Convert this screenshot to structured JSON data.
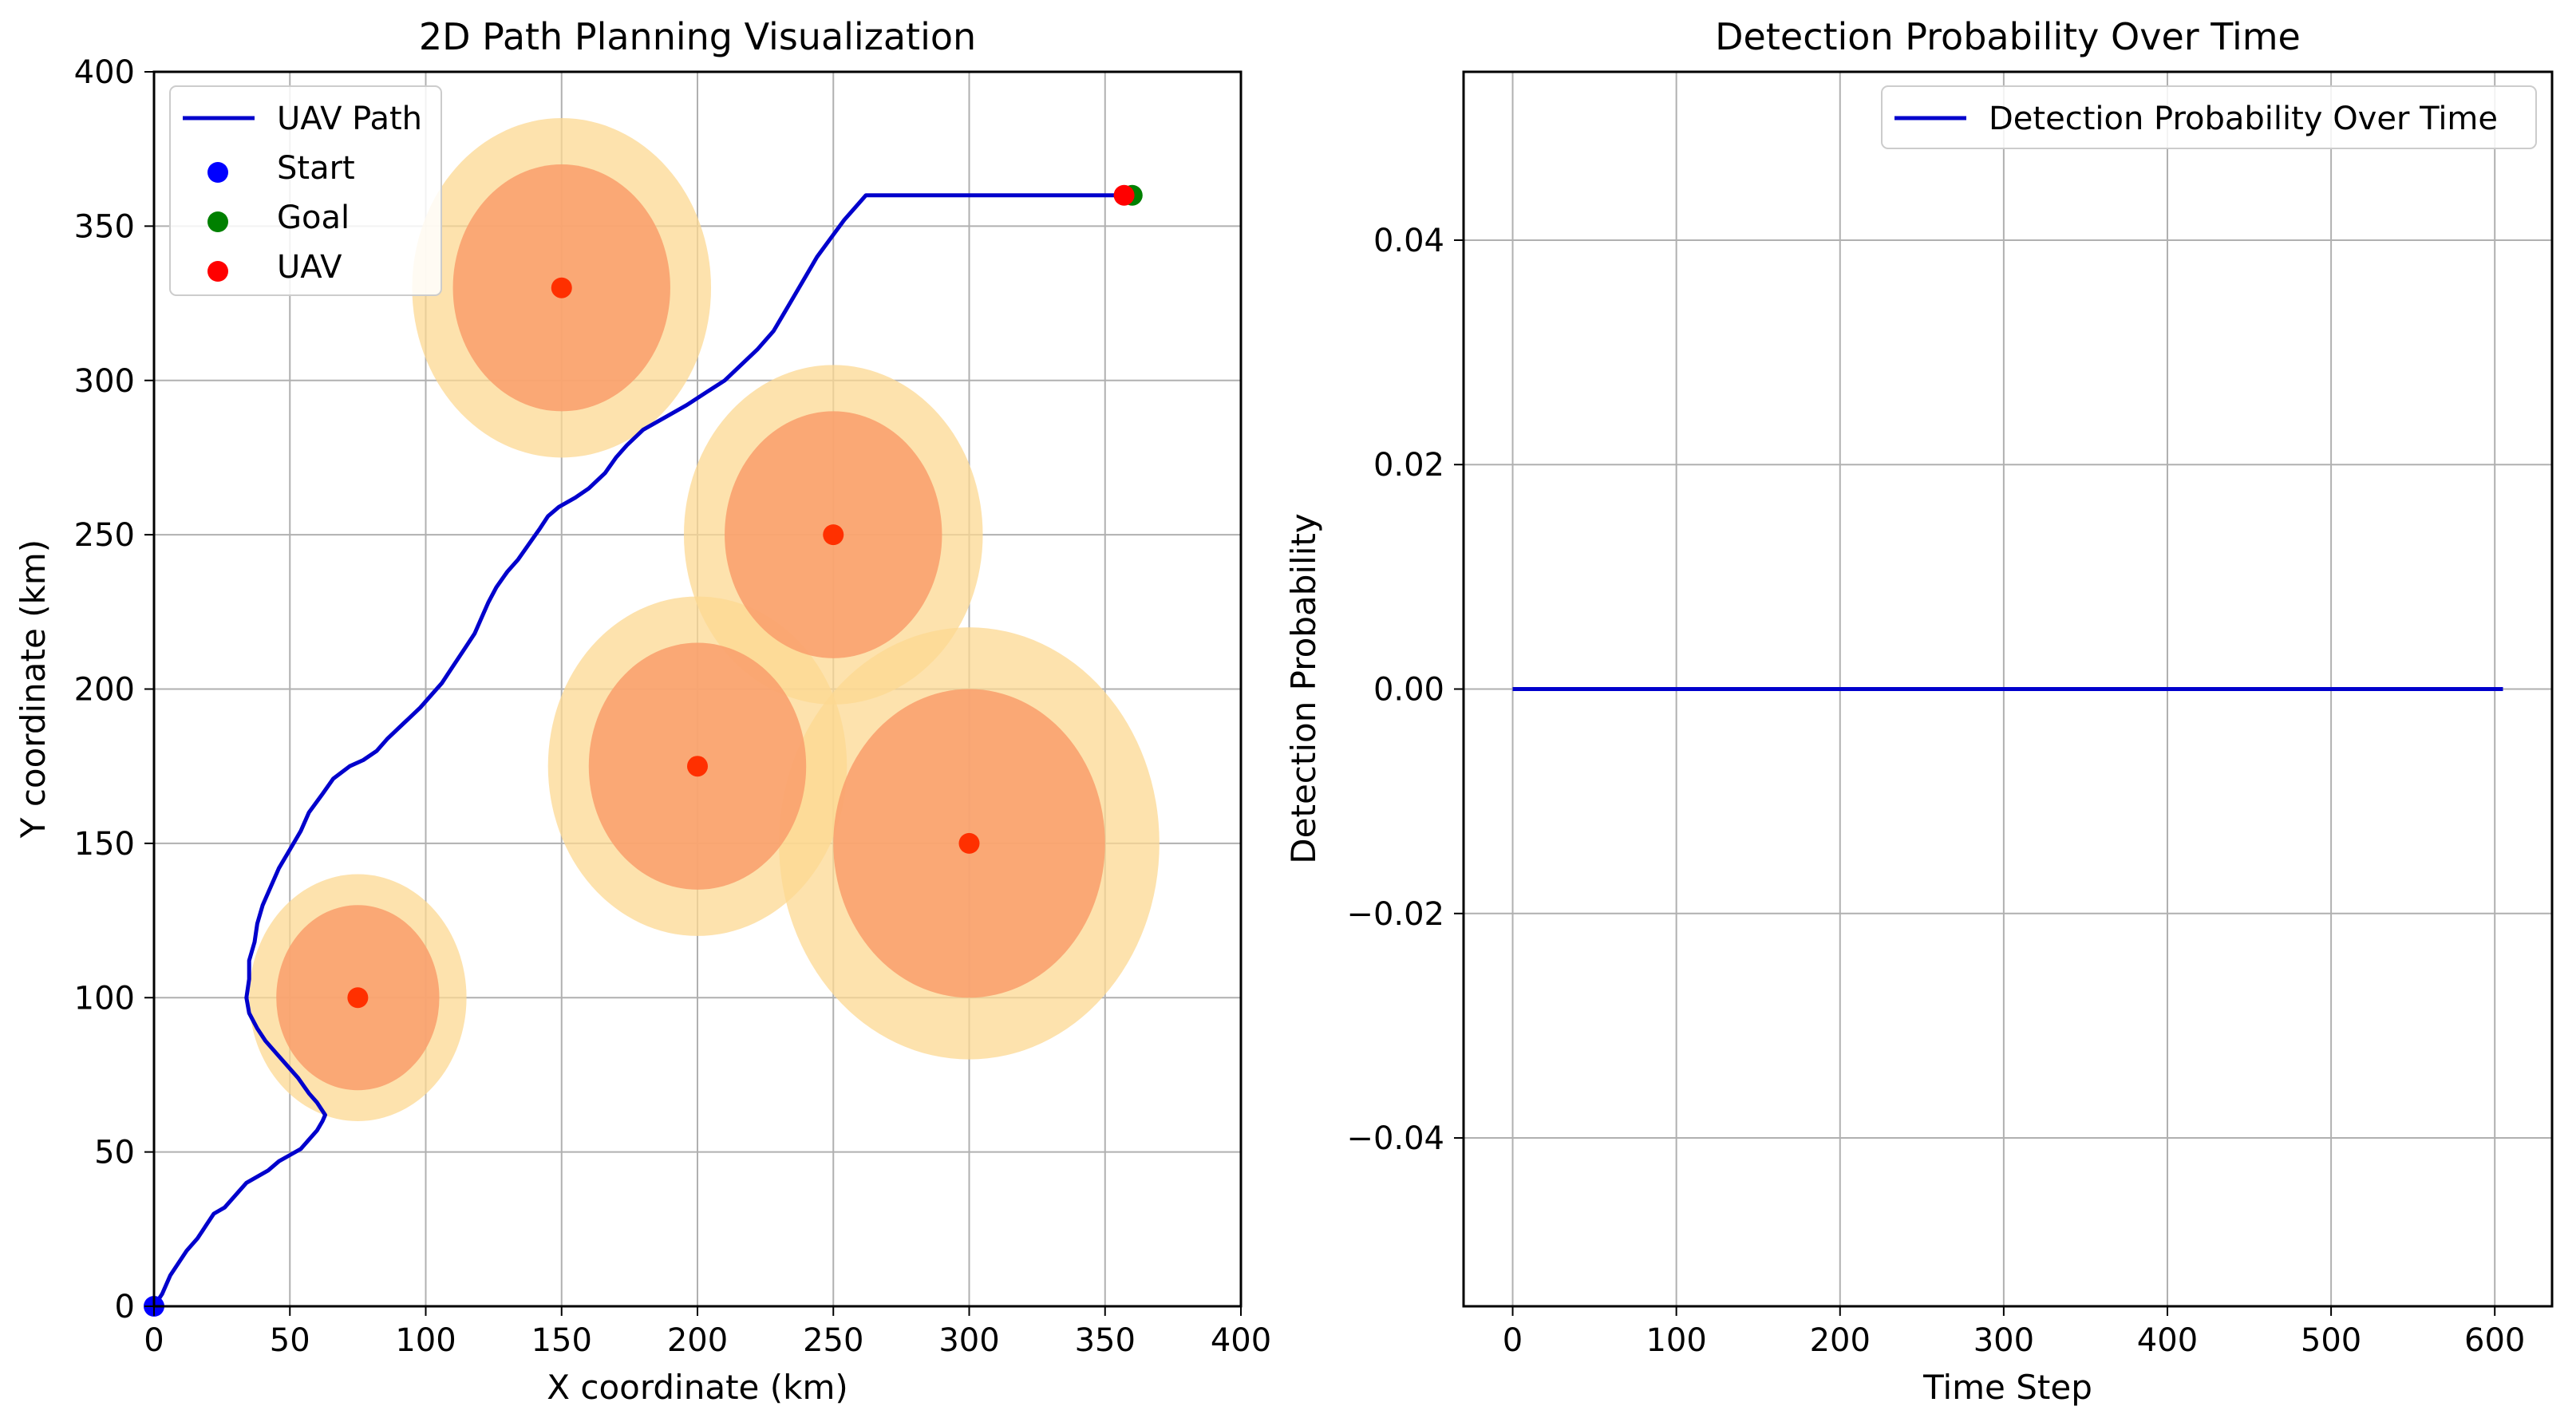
{
  "chart_data": [
    {
      "type": "line",
      "title": "2D Path Planning Visualization",
      "xlabel": "X coordinate (km)",
      "ylabel": "Y coordinate (km)",
      "xlim": [
        0,
        400
      ],
      "ylim": [
        0,
        400
      ],
      "xticks": [
        0,
        50,
        100,
        150,
        200,
        250,
        300,
        350,
        400
      ],
      "yticks": [
        0,
        50,
        100,
        150,
        200,
        250,
        300,
        350,
        400
      ],
      "grid": true,
      "legend_position": "top-left",
      "legend": [
        {
          "label": "UAV Path",
          "kind": "line",
          "color": "#0000cc"
        },
        {
          "label": "Start",
          "kind": "dot",
          "color": "#0000ff"
        },
        {
          "label": "Goal",
          "kind": "dot",
          "color": "#008000"
        },
        {
          "label": "UAV",
          "kind": "dot",
          "color": "#ff0000"
        }
      ],
      "path_color": "#0000cc",
      "path": [
        [
          0,
          0
        ],
        [
          3,
          4
        ],
        [
          6,
          10
        ],
        [
          9,
          14
        ],
        [
          12,
          18
        ],
        [
          16,
          22
        ],
        [
          19,
          26
        ],
        [
          22,
          30
        ],
        [
          26,
          32
        ],
        [
          30,
          36
        ],
        [
          34,
          40
        ],
        [
          38,
          42
        ],
        [
          42,
          44
        ],
        [
          46,
          47
        ],
        [
          50,
          49
        ],
        [
          54,
          51
        ],
        [
          57,
          54
        ],
        [
          60,
          57
        ],
        [
          62,
          60
        ],
        [
          63,
          62
        ],
        [
          60,
          66
        ],
        [
          57,
          69
        ],
        [
          53,
          74
        ],
        [
          49,
          78
        ],
        [
          45,
          82
        ],
        [
          41,
          86
        ],
        [
          38,
          90
        ],
        [
          35,
          95
        ],
        [
          34,
          100
        ],
        [
          35,
          106
        ],
        [
          35,
          112
        ],
        [
          37,
          118
        ],
        [
          38,
          124
        ],
        [
          40,
          130
        ],
        [
          43,
          136
        ],
        [
          46,
          142
        ],
        [
          50,
          148
        ],
        [
          54,
          154
        ],
        [
          57,
          160
        ],
        [
          62,
          166
        ],
        [
          66,
          171
        ],
        [
          72,
          175
        ],
        [
          77,
          177
        ],
        [
          82,
          180
        ],
        [
          86,
          184
        ],
        [
          92,
          189
        ],
        [
          98,
          194
        ],
        [
          102,
          198
        ],
        [
          106,
          202
        ],
        [
          109,
          206
        ],
        [
          112,
          210
        ],
        [
          115,
          214
        ],
        [
          118,
          218
        ],
        [
          120,
          222
        ],
        [
          123,
          228
        ],
        [
          126,
          233
        ],
        [
          130,
          238
        ],
        [
          134,
          242
        ],
        [
          138,
          247
        ],
        [
          142,
          252
        ],
        [
          145,
          256
        ],
        [
          149,
          259
        ],
        [
          155,
          262
        ],
        [
          160,
          265
        ],
        [
          166,
          270
        ],
        [
          170,
          275
        ],
        [
          174,
          279
        ],
        [
          180,
          284
        ],
        [
          188,
          288
        ],
        [
          196,
          292
        ],
        [
          203,
          296
        ],
        [
          210,
          300
        ],
        [
          216,
          305
        ],
        [
          222,
          310
        ],
        [
          228,
          316
        ],
        [
          232,
          322
        ],
        [
          236,
          328
        ],
        [
          240,
          334
        ],
        [
          244,
          340
        ],
        [
          249,
          346
        ],
        [
          254,
          352
        ],
        [
          258,
          356
        ],
        [
          262,
          360
        ],
        [
          358,
          360
        ]
      ],
      "threats": [
        {
          "x": 75,
          "y": 100,
          "inner_r": 30,
          "outer_r": 40
        },
        {
          "x": 150,
          "y": 330,
          "inner_r": 40,
          "outer_r": 55
        },
        {
          "x": 200,
          "y": 175,
          "inner_r": 40,
          "outer_r": 55
        },
        {
          "x": 250,
          "y": 250,
          "inner_r": 40,
          "outer_r": 55
        },
        {
          "x": 300,
          "y": 150,
          "inner_r": 50,
          "outer_r": 70
        }
      ],
      "threat_inner_color": "#f99d6b",
      "threat_outer_color": "#fcd891",
      "threat_center_color": "#ff3000",
      "start": {
        "x": 0,
        "y": 0
      },
      "goal": {
        "x": 360,
        "y": 360
      },
      "uav": {
        "x": 357,
        "y": 360
      }
    },
    {
      "type": "line",
      "title": "Detection Probability Over Time",
      "xlabel": "Time Step",
      "ylabel": "Detection Probability",
      "xlim": [
        -30,
        635
      ],
      "ylim": [
        -0.055,
        0.055
      ],
      "xticks": [
        0,
        100,
        200,
        300,
        400,
        500,
        600
      ],
      "yticks": [
        -0.04,
        -0.02,
        0.0,
        0.02,
        0.04
      ],
      "ytick_labels": [
        "−0.04",
        "−0.02",
        "0.00",
        "0.02",
        "0.04"
      ],
      "grid": true,
      "legend_position": "top-right",
      "legend": [
        {
          "label": "Detection Probability Over Time",
          "kind": "line",
          "color": "#0000cc"
        }
      ],
      "series": [
        {
          "name": "Detection Probability Over Time",
          "x": [
            0,
            605
          ],
          "y": [
            0,
            0
          ],
          "color": "#0000cc"
        }
      ]
    }
  ]
}
